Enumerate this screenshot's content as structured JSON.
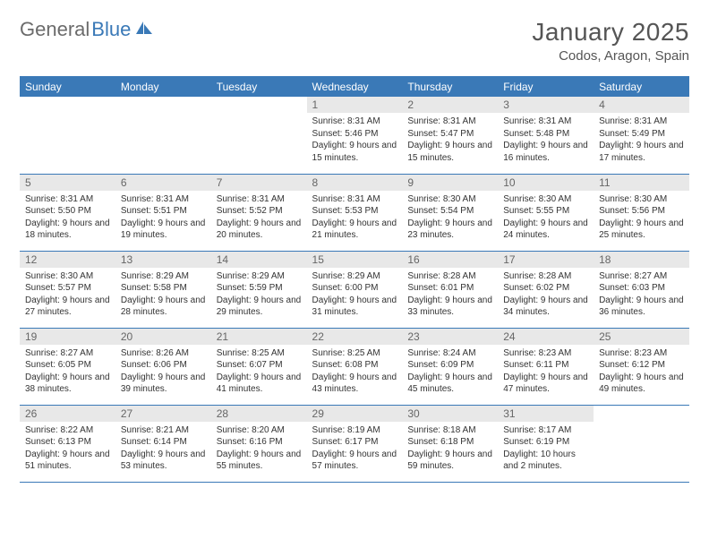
{
  "brand": {
    "name1": "General",
    "name2": "Blue"
  },
  "title": "January 2025",
  "location": "Codos, Aragon, Spain",
  "colors": {
    "header_bg": "#3a79b7",
    "header_text": "#ffffff",
    "daynum_bg": "#e8e8e8",
    "daynum_text": "#666666",
    "rule": "#3a79b7",
    "body_text": "#333333",
    "logo_gray": "#6b6b6b",
    "logo_blue": "#3a79b7"
  },
  "weekdays": [
    "Sunday",
    "Monday",
    "Tuesday",
    "Wednesday",
    "Thursday",
    "Friday",
    "Saturday"
  ],
  "weeks": [
    [
      null,
      null,
      null,
      {
        "n": "1",
        "sunrise": "8:31 AM",
        "sunset": "5:46 PM",
        "daylight": "9 hours and 15 minutes."
      },
      {
        "n": "2",
        "sunrise": "8:31 AM",
        "sunset": "5:47 PM",
        "daylight": "9 hours and 15 minutes."
      },
      {
        "n": "3",
        "sunrise": "8:31 AM",
        "sunset": "5:48 PM",
        "daylight": "9 hours and 16 minutes."
      },
      {
        "n": "4",
        "sunrise": "8:31 AM",
        "sunset": "5:49 PM",
        "daylight": "9 hours and 17 minutes."
      }
    ],
    [
      {
        "n": "5",
        "sunrise": "8:31 AM",
        "sunset": "5:50 PM",
        "daylight": "9 hours and 18 minutes."
      },
      {
        "n": "6",
        "sunrise": "8:31 AM",
        "sunset": "5:51 PM",
        "daylight": "9 hours and 19 minutes."
      },
      {
        "n": "7",
        "sunrise": "8:31 AM",
        "sunset": "5:52 PM",
        "daylight": "9 hours and 20 minutes."
      },
      {
        "n": "8",
        "sunrise": "8:31 AM",
        "sunset": "5:53 PM",
        "daylight": "9 hours and 21 minutes."
      },
      {
        "n": "9",
        "sunrise": "8:30 AM",
        "sunset": "5:54 PM",
        "daylight": "9 hours and 23 minutes."
      },
      {
        "n": "10",
        "sunrise": "8:30 AM",
        "sunset": "5:55 PM",
        "daylight": "9 hours and 24 minutes."
      },
      {
        "n": "11",
        "sunrise": "8:30 AM",
        "sunset": "5:56 PM",
        "daylight": "9 hours and 25 minutes."
      }
    ],
    [
      {
        "n": "12",
        "sunrise": "8:30 AM",
        "sunset": "5:57 PM",
        "daylight": "9 hours and 27 minutes."
      },
      {
        "n": "13",
        "sunrise": "8:29 AM",
        "sunset": "5:58 PM",
        "daylight": "9 hours and 28 minutes."
      },
      {
        "n": "14",
        "sunrise": "8:29 AM",
        "sunset": "5:59 PM",
        "daylight": "9 hours and 29 minutes."
      },
      {
        "n": "15",
        "sunrise": "8:29 AM",
        "sunset": "6:00 PM",
        "daylight": "9 hours and 31 minutes."
      },
      {
        "n": "16",
        "sunrise": "8:28 AM",
        "sunset": "6:01 PM",
        "daylight": "9 hours and 33 minutes."
      },
      {
        "n": "17",
        "sunrise": "8:28 AM",
        "sunset": "6:02 PM",
        "daylight": "9 hours and 34 minutes."
      },
      {
        "n": "18",
        "sunrise": "8:27 AM",
        "sunset": "6:03 PM",
        "daylight": "9 hours and 36 minutes."
      }
    ],
    [
      {
        "n": "19",
        "sunrise": "8:27 AM",
        "sunset": "6:05 PM",
        "daylight": "9 hours and 38 minutes."
      },
      {
        "n": "20",
        "sunrise": "8:26 AM",
        "sunset": "6:06 PM",
        "daylight": "9 hours and 39 minutes."
      },
      {
        "n": "21",
        "sunrise": "8:25 AM",
        "sunset": "6:07 PM",
        "daylight": "9 hours and 41 minutes."
      },
      {
        "n": "22",
        "sunrise": "8:25 AM",
        "sunset": "6:08 PM",
        "daylight": "9 hours and 43 minutes."
      },
      {
        "n": "23",
        "sunrise": "8:24 AM",
        "sunset": "6:09 PM",
        "daylight": "9 hours and 45 minutes."
      },
      {
        "n": "24",
        "sunrise": "8:23 AM",
        "sunset": "6:11 PM",
        "daylight": "9 hours and 47 minutes."
      },
      {
        "n": "25",
        "sunrise": "8:23 AM",
        "sunset": "6:12 PM",
        "daylight": "9 hours and 49 minutes."
      }
    ],
    [
      {
        "n": "26",
        "sunrise": "8:22 AM",
        "sunset": "6:13 PM",
        "daylight": "9 hours and 51 minutes."
      },
      {
        "n": "27",
        "sunrise": "8:21 AM",
        "sunset": "6:14 PM",
        "daylight": "9 hours and 53 minutes."
      },
      {
        "n": "28",
        "sunrise": "8:20 AM",
        "sunset": "6:16 PM",
        "daylight": "9 hours and 55 minutes."
      },
      {
        "n": "29",
        "sunrise": "8:19 AM",
        "sunset": "6:17 PM",
        "daylight": "9 hours and 57 minutes."
      },
      {
        "n": "30",
        "sunrise": "8:18 AM",
        "sunset": "6:18 PM",
        "daylight": "9 hours and 59 minutes."
      },
      {
        "n": "31",
        "sunrise": "8:17 AM",
        "sunset": "6:19 PM",
        "daylight": "10 hours and 2 minutes."
      },
      null
    ]
  ],
  "labels": {
    "sunrise": "Sunrise:",
    "sunset": "Sunset:",
    "daylight": "Daylight:"
  }
}
